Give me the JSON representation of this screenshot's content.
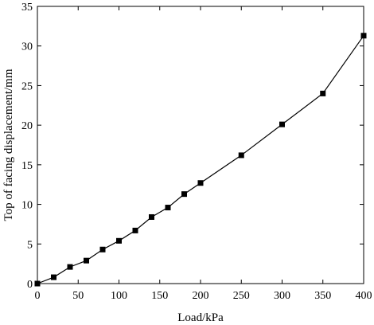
{
  "chart_data": {
    "type": "line",
    "xlabel": "Load/kPa",
    "ylabel": "Top of  facing displacement/mm",
    "xlim": [
      0,
      400
    ],
    "ylim": [
      0,
      35
    ],
    "xticks": [
      0,
      50,
      100,
      150,
      200,
      250,
      300,
      350,
      400
    ],
    "yticks": [
      0,
      5,
      10,
      15,
      20,
      25,
      30,
      35
    ],
    "grid": false,
    "marker": "square",
    "colors": {
      "line": "#000000",
      "marker": "#000000",
      "axes": "#000000"
    },
    "series": [
      {
        "x": [
          0,
          20,
          40,
          60,
          80,
          100,
          120,
          140,
          160,
          180,
          200,
          250,
          300,
          350,
          400
        ],
        "y": [
          0,
          0.8,
          2.1,
          2.9,
          4.3,
          5.4,
          6.7,
          8.4,
          9.6,
          11.3,
          12.7,
          16.2,
          20.1,
          24.0,
          31.3
        ]
      }
    ]
  }
}
